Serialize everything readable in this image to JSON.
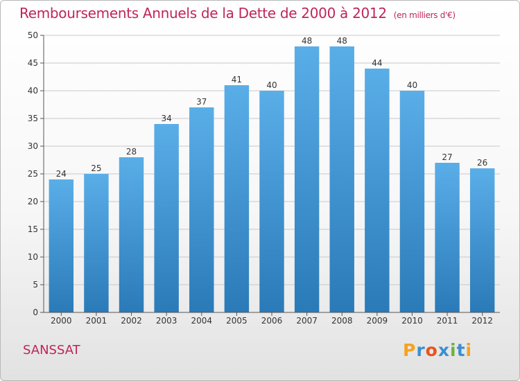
{
  "header": {
    "title": "Remboursements Annuels de la Dette de 2000 à 2012",
    "unit": "(en milliers d'€)"
  },
  "footer": {
    "commune": "SANSSAT",
    "logo": "Proxiti",
    "logo_colors": [
      "#f7a21b",
      "#3c8fcf",
      "#e8531f",
      "#3c8fcf",
      "#6cb33e",
      "#3c8fcf",
      "#f7a21b"
    ]
  },
  "colors": {
    "title": "#c0245a",
    "bar_top": "#5aaee8",
    "bar_bottom": "#2a7ab8",
    "grid": "#c8c8c8",
    "axis": "#555555"
  },
  "chart_data": {
    "type": "bar",
    "title": "Remboursements Annuels de la Dette de 2000 à 2012",
    "categories": [
      "2000",
      "2001",
      "2002",
      "2003",
      "2004",
      "2005",
      "2006",
      "2007",
      "2008",
      "2009",
      "2010",
      "2011",
      "2012"
    ],
    "values": [
      24,
      25,
      28,
      34,
      37,
      41,
      40,
      48,
      48,
      44,
      40,
      27,
      26
    ],
    "ylim": [
      0,
      50
    ],
    "yticks": [
      0,
      5,
      10,
      15,
      20,
      25,
      30,
      35,
      40,
      45,
      50
    ],
    "grid": true,
    "xlabel": "",
    "ylabel": ""
  }
}
